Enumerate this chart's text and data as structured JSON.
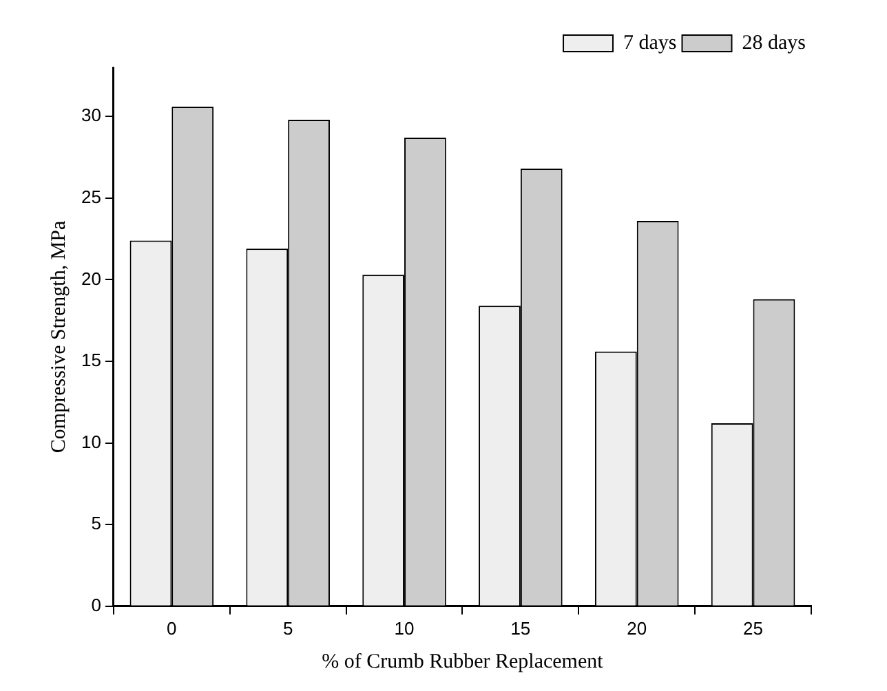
{
  "chart_data": {
    "type": "bar",
    "xlabel": "% of Crumb Rubber Replacement",
    "ylabel": "Compressive Strength, MPa",
    "categories": [
      "0",
      "5",
      "10",
      "15",
      "20",
      "25"
    ],
    "series": [
      {
        "name": "7 days",
        "color": "#eeeeee",
        "values": [
          22.4,
          21.9,
          20.3,
          18.4,
          15.6,
          11.2
        ]
      },
      {
        "name": "28 days",
        "color": "#cccccc",
        "values": [
          30.6,
          29.8,
          28.7,
          26.8,
          23.6,
          18.8
        ]
      }
    ],
    "ylim": [
      0,
      33
    ],
    "yticks": [
      0,
      5,
      10,
      15,
      20,
      25,
      30
    ],
    "grid": false,
    "legend": "top right"
  }
}
